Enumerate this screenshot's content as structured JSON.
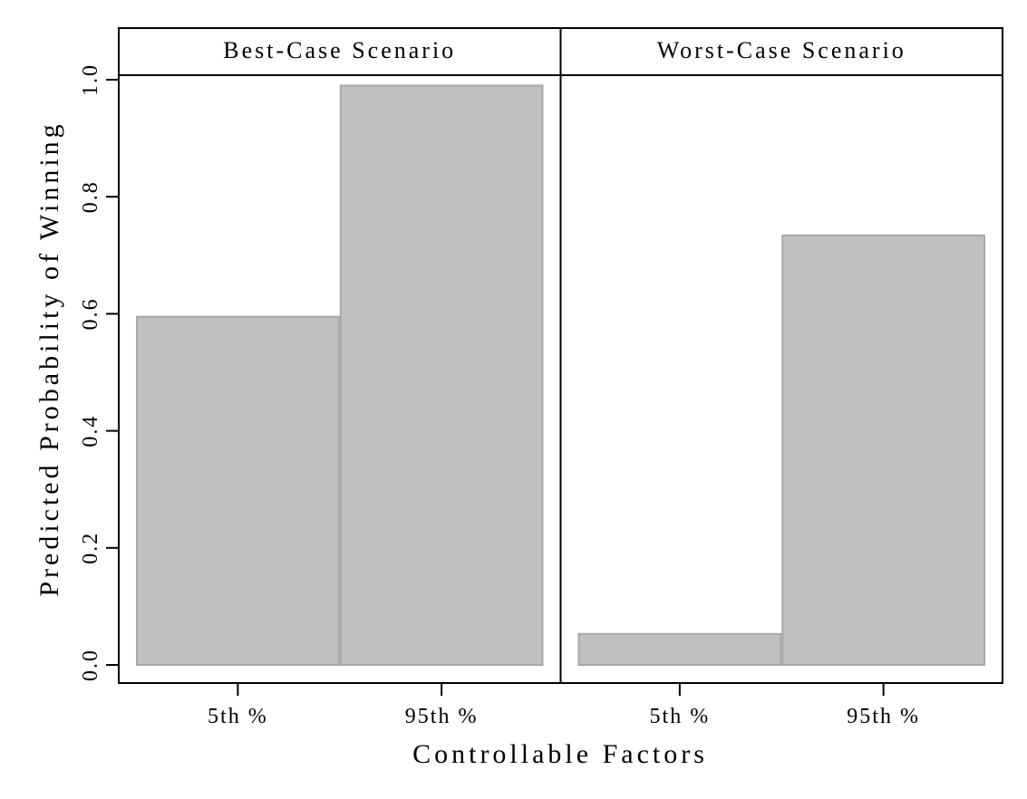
{
  "chart_data": {
    "type": "bar",
    "xlabel": "Controllable Factors",
    "ylabel": "Predicted Probability of Winning",
    "ylim": [
      0,
      1
    ],
    "yticks": [
      "0.0",
      "0.2",
      "0.4",
      "0.6",
      "0.8",
      "1.0"
    ],
    "grid": false,
    "bar_color": "#c0c0c0",
    "bar_edge_color": "#a8a8a8",
    "panels": [
      {
        "strip": "Best-Case Scenario",
        "categories": [
          "5th %",
          "95th %"
        ],
        "values": [
          0.595,
          0.99
        ]
      },
      {
        "strip": "Worst-Case Scenario",
        "categories": [
          "5th %",
          "95th %"
        ],
        "values": [
          0.053,
          0.734
        ]
      }
    ]
  }
}
